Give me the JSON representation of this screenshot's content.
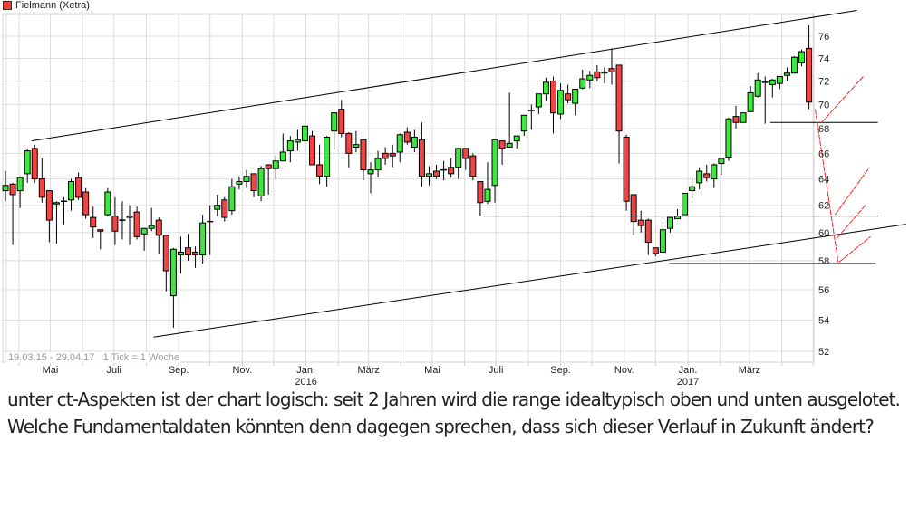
{
  "legend": {
    "label": "Fielmann (Xetra)",
    "color": "#f04040"
  },
  "range_note": "19.03.15 - 29.04.17   1 Tick = 1 Woche",
  "comment": "unter ct-Aspekten ist der chart logisch:  seit 2 Jahren wird die range idealtypisch oben und unten ausgelotet. Welche Fundamentaldaten könnten denn dagegen sprechen, dass sich dieser Verlauf in Zukunft ändert?",
  "chart_data": {
    "type": "candlestick",
    "title": "Fielmann (Xetra)",
    "interval": "1 Woche",
    "start_date": "2015-03-19",
    "end_date": "2017-04-29",
    "y_scale": "log",
    "ylim": [
      51.3,
      78
    ],
    "y_ticks": [
      52,
      54,
      56,
      58,
      60,
      62,
      64,
      66,
      68,
      70,
      72,
      74,
      76
    ],
    "y_axis_side": "right",
    "grid": true,
    "colors": {
      "up": "#3ce83c",
      "down": "#f24444",
      "grid": "#dddddd",
      "annotation": "#000000",
      "projection": "#ff2020"
    },
    "x_ticks": [
      {
        "date": "2015-05-01",
        "label": "Mai"
      },
      {
        "date": "2015-07-01",
        "label": "Juli"
      },
      {
        "date": "2015-09-01",
        "label": "Sep."
      },
      {
        "date": "2015-11-01",
        "label": "Nov."
      },
      {
        "date": "2016-01-01",
        "label": "Jan.",
        "year": "2016"
      },
      {
        "date": "2016-03-01",
        "label": "März"
      },
      {
        "date": "2016-05-01",
        "label": "Mai"
      },
      {
        "date": "2016-07-01",
        "label": "Juli"
      },
      {
        "date": "2016-09-01",
        "label": "Sep."
      },
      {
        "date": "2016-11-01",
        "label": "Nov."
      },
      {
        "date": "2017-01-01",
        "label": "Jan.",
        "year": "2017"
      },
      {
        "date": "2017-03-01",
        "label": "März"
      }
    ],
    "ohlc_fields": [
      "open",
      "high",
      "low",
      "close"
    ],
    "ohlc": [
      [
        63.1,
        64.6,
        62.3,
        63.5
      ],
      [
        63.6,
        63.7,
        59.1,
        62.8
      ],
      [
        63.1,
        64.2,
        61.8,
        64.1
      ],
      [
        64.4,
        66.4,
        63.7,
        66.2
      ],
      [
        66.4,
        66.7,
        63.7,
        64.0
      ],
      [
        64.0,
        65.6,
        62.2,
        62.6
      ],
      [
        63.1,
        63.1,
        59.3,
        60.9
      ],
      [
        62.1,
        62.3,
        59.2,
        62.2
      ],
      [
        62.3,
        62.6,
        60.6,
        62.3
      ],
      [
        62.4,
        64.0,
        61.6,
        63.8
      ],
      [
        64.1,
        64.5,
        62.4,
        62.6
      ],
      [
        63.0,
        63.3,
        61.0,
        61.3
      ],
      [
        61.1,
        61.9,
        59.6,
        60.4
      ],
      [
        60.2,
        60.2,
        58.8,
        60.1
      ],
      [
        61.3,
        63.3,
        61.2,
        63.0
      ],
      [
        61.2,
        62.6,
        59.1,
        60.1
      ],
      [
        60.9,
        62.3,
        59.5,
        60.9
      ],
      [
        61.1,
        62.0,
        59.1,
        61.2
      ],
      [
        61.5,
        61.9,
        59.5,
        59.7
      ],
      [
        59.9,
        60.3,
        58.7,
        60.3
      ],
      [
        60.3,
        61.8,
        60.1,
        60.5
      ],
      [
        60.9,
        61.1,
        58.5,
        59.8
      ],
      [
        59.8,
        59.8,
        55.9,
        57.3
      ],
      [
        55.6,
        58.9,
        53.5,
        58.8
      ],
      [
        58.4,
        59.7,
        57.1,
        58.6
      ],
      [
        58.9,
        59.9,
        58.0,
        58.4
      ],
      [
        58.6,
        59.0,
        57.5,
        58.4
      ],
      [
        58.4,
        61.3,
        57.8,
        60.7
      ],
      [
        60.8,
        62.0,
        58.4,
        60.8
      ],
      [
        61.7,
        62.8,
        61.2,
        62.0
      ],
      [
        62.4,
        62.6,
        60.8,
        61.1
      ],
      [
        61.6,
        64.0,
        61.3,
        63.4
      ],
      [
        63.6,
        64.2,
        63.2,
        63.8
      ],
      [
        63.8,
        64.7,
        63.3,
        64.2
      ],
      [
        64.4,
        64.4,
        62.6,
        63.1
      ],
      [
        62.7,
        65.0,
        62.3,
        64.8
      ],
      [
        65.1,
        65.1,
        62.8,
        64.8
      ],
      [
        64.8,
        65.8,
        64.0,
        65.4
      ],
      [
        65.4,
        67.6,
        65.4,
        66.1
      ],
      [
        66.2,
        67.4,
        65.3,
        67.0
      ],
      [
        66.9,
        67.9,
        66.2,
        67.1
      ],
      [
        67.0,
        68.2,
        66.7,
        68.2
      ],
      [
        67.4,
        67.8,
        65.1,
        65.1
      ],
      [
        65.1,
        66.7,
        63.6,
        64.2
      ],
      [
        64.2,
        67.4,
        63.4,
        67.3
      ],
      [
        67.8,
        69.3,
        66.3,
        69.3
      ],
      [
        69.6,
        70.4,
        67.3,
        67.6
      ],
      [
        67.6,
        67.7,
        64.9,
        66.0
      ],
      [
        66.5,
        67.8,
        66.1,
        66.7
      ],
      [
        67.1,
        67.1,
        63.9,
        64.7
      ],
      [
        64.4,
        65.3,
        62.9,
        64.7
      ],
      [
        64.7,
        66.2,
        64.1,
        65.6
      ],
      [
        66.0,
        66.5,
        65.1,
        65.6
      ],
      [
        66.0,
        66.7,
        64.9,
        65.8
      ],
      [
        66.1,
        67.6,
        65.3,
        67.5
      ],
      [
        67.7,
        68.1,
        66.7,
        66.9
      ],
      [
        66.5,
        67.9,
        66.1,
        67.3
      ],
      [
        67.1,
        68.5,
        63.4,
        64.2
      ],
      [
        64.2,
        65.0,
        63.5,
        64.4
      ],
      [
        64.6,
        65.1,
        64.0,
        64.2
      ],
      [
        64.7,
        65.4,
        63.9,
        64.7
      ],
      [
        64.9,
        65.6,
        64.1,
        64.4
      ],
      [
        64.9,
        66.4,
        64.0,
        66.4
      ],
      [
        66.4,
        66.4,
        64.7,
        65.6
      ],
      [
        65.8,
        66.0,
        63.9,
        64.2
      ],
      [
        63.8,
        63.8,
        61.2,
        62.2
      ],
      [
        62.3,
        65.3,
        62.1,
        63.2
      ],
      [
        63.5,
        67.1,
        62.2,
        67.1
      ],
      [
        67.0,
        67.0,
        65.1,
        66.4
      ],
      [
        66.5,
        71.0,
        66.5,
        66.8
      ],
      [
        67.0,
        67.4,
        66.4,
        67.4
      ],
      [
        67.8,
        69.1,
        67.4,
        69.1
      ],
      [
        69.5,
        70.0,
        67.9,
        69.5
      ],
      [
        69.8,
        70.9,
        69.2,
        70.9
      ],
      [
        70.9,
        72.3,
        70.3,
        71.9
      ],
      [
        72.0,
        72.4,
        67.6,
        69.3
      ],
      [
        69.2,
        71.8,
        68.8,
        71.2
      ],
      [
        70.9,
        71.7,
        70.1,
        70.4
      ],
      [
        70.1,
        71.3,
        69.1,
        71.3
      ],
      [
        71.4,
        73.0,
        71.3,
        72.2
      ],
      [
        72.1,
        72.9,
        71.4,
        72.5
      ],
      [
        72.8,
        73.4,
        72.0,
        72.3
      ],
      [
        72.7,
        73.2,
        71.8,
        72.8
      ],
      [
        73.1,
        74.9,
        71.7,
        72.8
      ],
      [
        73.4,
        73.4,
        65.2,
        67.8
      ],
      [
        67.3,
        67.5,
        61.6,
        62.3
      ],
      [
        62.8,
        62.8,
        59.8,
        60.8
      ],
      [
        60.9,
        61.6,
        60.0,
        60.5
      ],
      [
        60.9,
        61.0,
        58.4,
        59.3
      ],
      [
        58.9,
        58.9,
        58.3,
        58.5
      ],
      [
        58.6,
        60.8,
        58.6,
        60.2
      ],
      [
        60.3,
        61.1,
        60.0,
        61.1
      ],
      [
        61.0,
        61.7,
        61.0,
        61.2
      ],
      [
        61.3,
        62.9,
        61.3,
        62.9
      ],
      [
        63.1,
        64.0,
        62.5,
        63.4
      ],
      [
        63.7,
        64.9,
        63.2,
        64.6
      ],
      [
        64.4,
        65.1,
        63.8,
        64.1
      ],
      [
        64.0,
        65.2,
        63.3,
        65.1
      ],
      [
        65.2,
        65.6,
        64.3,
        65.6
      ],
      [
        65.7,
        68.9,
        65.4,
        68.8
      ],
      [
        69.0,
        69.9,
        68.0,
        68.5
      ],
      [
        68.5,
        69.3,
        68.5,
        69.3
      ],
      [
        69.4,
        71.6,
        69.4,
        71.0
      ],
      [
        70.7,
        72.7,
        70.6,
        72.1
      ],
      [
        71.9,
        72.4,
        68.4,
        71.9
      ],
      [
        71.7,
        72.2,
        70.6,
        72.1
      ],
      [
        71.8,
        72.4,
        71.3,
        72.4
      ],
      [
        72.5,
        73.2,
        72.0,
        72.7
      ],
      [
        72.7,
        74.2,
        72.7,
        74.1
      ],
      [
        73.6,
        74.8,
        73.3,
        74.6
      ],
      [
        74.9,
        77.0,
        69.6,
        70.2
      ]
    ],
    "annotations": [
      {
        "name": "upper-channel-line",
        "kind": "trend",
        "from": [
          "2015-04-13",
          67.0
        ],
        "to": [
          "2017-06-12",
          78.4
        ]
      },
      {
        "name": "lower-channel-line",
        "kind": "trend",
        "from": [
          "2015-08-08",
          52.9
        ],
        "to": [
          "2017-07-29",
          60.6
        ]
      },
      {
        "name": "support-line-61",
        "kind": "trend",
        "from": [
          "2016-06-19",
          61.2
        ],
        "to": [
          "2017-07-02",
          61.2
        ]
      },
      {
        "name": "support-line-58",
        "kind": "trend",
        "from": [
          "2016-12-14",
          57.8
        ],
        "to": [
          "2017-06-30",
          57.8
        ]
      },
      {
        "name": "support-line-68",
        "kind": "trend",
        "from": [
          "2017-03-21",
          68.5
        ],
        "to": [
          "2017-07-02",
          68.5
        ]
      },
      {
        "name": "projection-down",
        "kind": "projection",
        "from": [
          "2017-05-03",
          69.6
        ],
        "to": [
          "2017-05-25",
          57.9
        ]
      },
      {
        "name": "projection-up-1",
        "kind": "projection",
        "from": [
          "2017-05-09",
          68.5
        ],
        "to": [
          "2017-06-18",
          72.4
        ]
      },
      {
        "name": "projection-up-2",
        "kind": "projection",
        "from": [
          "2017-05-22",
          61.3
        ],
        "to": [
          "2017-06-24",
          64.9
        ]
      },
      {
        "name": "projection-up-3",
        "kind": "projection",
        "from": [
          "2017-05-24",
          59.6
        ],
        "to": [
          "2017-06-20",
          62.0
        ]
      },
      {
        "name": "projection-up-4",
        "kind": "projection",
        "from": [
          "2017-05-26",
          57.9
        ],
        "to": [
          "2017-06-25",
          59.7
        ]
      }
    ]
  }
}
